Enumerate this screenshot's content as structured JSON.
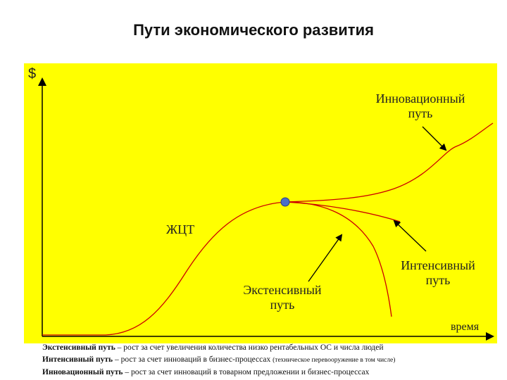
{
  "title": "Пути экономического развития",
  "labels": {
    "y_axis": "$",
    "x_axis": "время",
    "lifecycle": "ЖЦТ",
    "innovative": [
      "Инновационный",
      "путь"
    ],
    "intensive": [
      "Интенсивный",
      "путь"
    ],
    "extensive": [
      "Экстенсивный",
      "путь"
    ]
  },
  "legend": [
    {
      "term": "Экстенсивный путь",
      "text": " – рост за счет увеличения количества низко рентабельных ОС и числа людей",
      "note": ""
    },
    {
      "term": "Интенсивный путь",
      "text": " – рост за счет инноваций в бизнес-процессах ",
      "note": "(техническое перевооружение в том числе)"
    },
    {
      "term": "Инновационный путь",
      "text": " – рост за счет инноваций в товарном предложении и бизнес-процессах",
      "note": ""
    }
  ],
  "colors": {
    "background": "#ffff00",
    "lifecycle_curve": "#cc0000",
    "axes": "#000000",
    "arrows": "#000000",
    "point": "#4a6fc7"
  }
}
